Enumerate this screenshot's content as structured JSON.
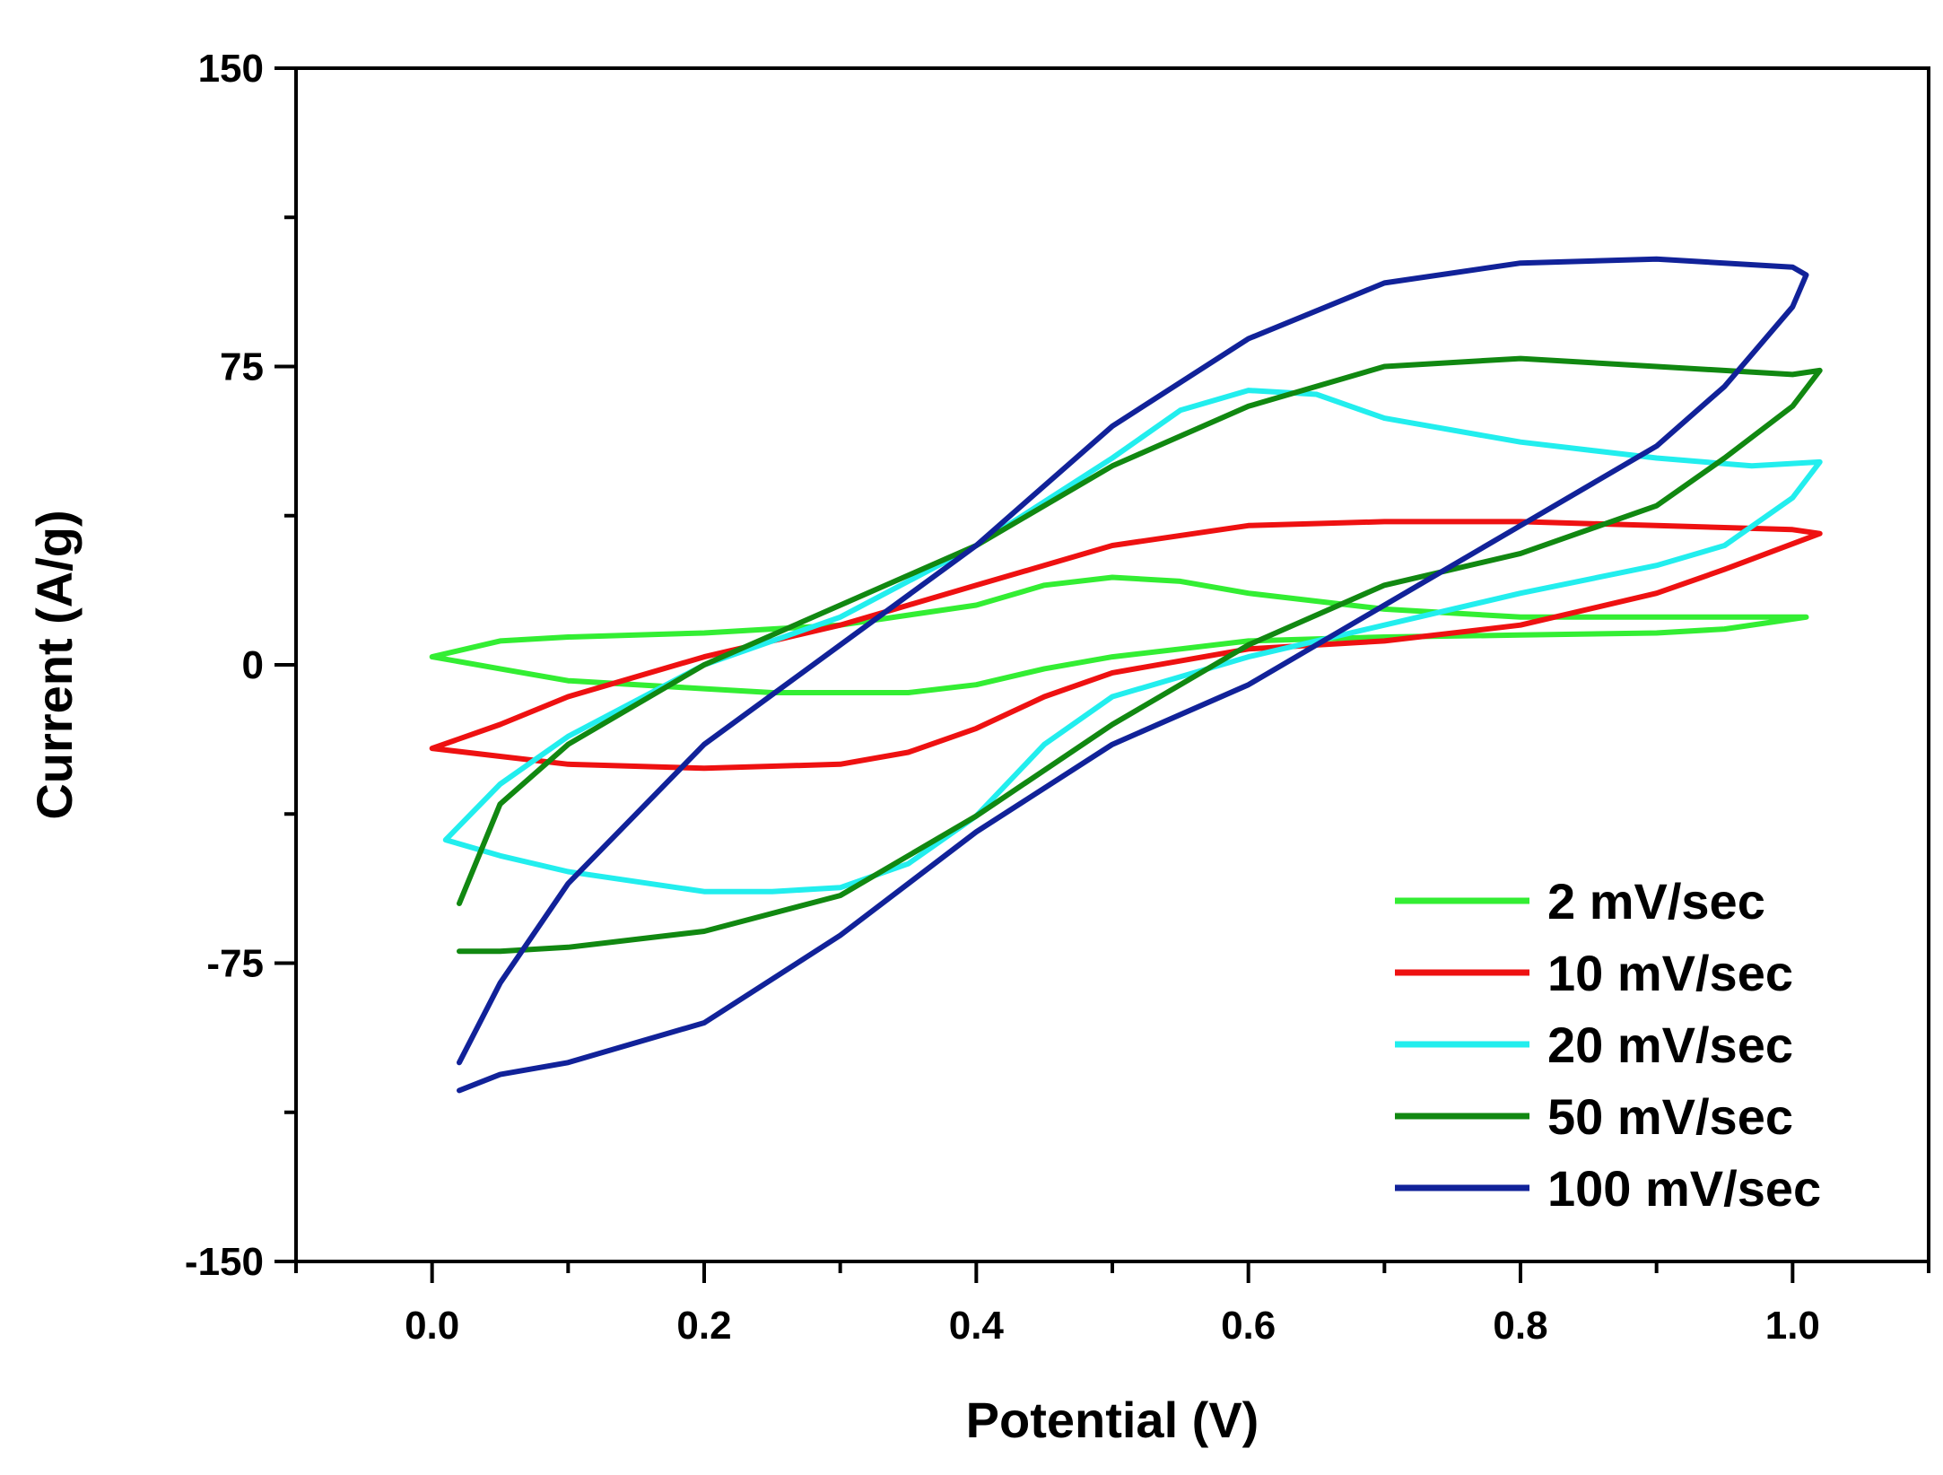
{
  "chart_data": {
    "type": "line",
    "title": "",
    "xlabel": "Potential (V)",
    "ylabel": "Current (A/g)",
    "xlim": [
      -0.1,
      1.1
    ],
    "ylim": [
      -150,
      150
    ],
    "x_ticks": [
      0.0,
      0.2,
      0.4,
      0.6,
      0.8,
      1.0
    ],
    "x_tick_labels": [
      "0.0",
      "0.2",
      "0.4",
      "0.6",
      "0.8",
      "1.0"
    ],
    "y_ticks": [
      150,
      75,
      0,
      -75,
      -150
    ],
    "y_tick_labels": [
      "150",
      "75",
      "0",
      "-75",
      "-150"
    ],
    "grid": false,
    "legend_position": "lower-right",
    "series": [
      {
        "name": "2 mV/sec",
        "color": "#33ee33",
        "x": [
          0.0,
          0.05,
          0.1,
          0.2,
          0.3,
          0.4,
          0.45,
          0.5,
          0.55,
          0.6,
          0.7,
          0.8,
          0.9,
          1.0,
          1.01,
          0.95,
          0.9,
          0.8,
          0.7,
          0.6,
          0.55,
          0.5,
          0.45,
          0.4,
          0.35,
          0.3,
          0.25,
          0.2,
          0.1,
          0.05,
          0.0
        ],
        "y": [
          2,
          6,
          7,
          8,
          10,
          15,
          20,
          22,
          21,
          18,
          14,
          12,
          12,
          12,
          12,
          9,
          8,
          7.5,
          7,
          6,
          4,
          2,
          -1,
          -5,
          -7,
          -7,
          -7,
          -6,
          -4,
          -1,
          2
        ]
      },
      {
        "name": "10 mV/sec",
        "color": "#ee1111",
        "x": [
          0.0,
          0.05,
          0.1,
          0.2,
          0.3,
          0.35,
          0.4,
          0.5,
          0.6,
          0.7,
          0.8,
          0.9,
          1.0,
          1.02,
          0.95,
          0.9,
          0.8,
          0.7,
          0.6,
          0.5,
          0.45,
          0.4,
          0.35,
          0.3,
          0.2,
          0.1,
          0.05,
          0.0
        ],
        "y": [
          -21,
          -15,
          -8,
          2,
          10,
          15,
          20,
          30,
          35,
          36,
          36,
          35,
          34,
          33,
          24,
          18,
          10,
          6,
          4,
          -2,
          -8,
          -16,
          -22,
          -25,
          -26,
          -25,
          -23,
          -21
        ]
      },
      {
        "name": "20 mV/sec",
        "color": "#22eeee",
        "x": [
          0.01,
          0.05,
          0.1,
          0.2,
          0.3,
          0.4,
          0.5,
          0.55,
          0.6,
          0.65,
          0.7,
          0.8,
          0.9,
          0.97,
          1.02,
          1.0,
          0.95,
          0.9,
          0.8,
          0.7,
          0.6,
          0.5,
          0.45,
          0.4,
          0.35,
          0.3,
          0.25,
          0.2,
          0.1,
          0.05,
          0.01
        ],
        "y": [
          -44,
          -30,
          -18,
          0,
          12,
          30,
          52,
          64,
          69,
          68,
          62,
          56,
          52,
          50,
          51,
          42,
          30,
          25,
          18,
          10,
          2,
          -8,
          -20,
          -38,
          -50,
          -56,
          -57,
          -57,
          -52,
          -48,
          -44
        ]
      },
      {
        "name": "50 mV/sec",
        "color": "#118811",
        "x": [
          0.02,
          0.05,
          0.1,
          0.2,
          0.3,
          0.4,
          0.5,
          0.6,
          0.7,
          0.8,
          0.9,
          1.0,
          1.02,
          1.0,
          0.95,
          0.9,
          0.8,
          0.7,
          0.6,
          0.5,
          0.4,
          0.3,
          0.2,
          0.1,
          0.05,
          0.02
        ],
        "y": [
          -60,
          -35,
          -20,
          0,
          15,
          30,
          50,
          65,
          75,
          77,
          75,
          73,
          74,
          65,
          52,
          40,
          28,
          20,
          5,
          -15,
          -38,
          -58,
          -67,
          -71,
          -72,
          -72
        ]
      },
      {
        "name": "100 mV/sec",
        "color": "#112299",
        "x": [
          0.02,
          0.05,
          0.1,
          0.2,
          0.3,
          0.4,
          0.5,
          0.6,
          0.7,
          0.8,
          0.9,
          1.0,
          1.01,
          1.0,
          0.95,
          0.9,
          0.8,
          0.7,
          0.6,
          0.5,
          0.4,
          0.3,
          0.2,
          0.1,
          0.05,
          0.02
        ],
        "y": [
          -100,
          -80,
          -55,
          -20,
          5,
          30,
          60,
          82,
          96,
          101,
          102,
          100,
          98,
          90,
          70,
          55,
          35,
          15,
          -5,
          -20,
          -42,
          -68,
          -90,
          -100,
          -103,
          -107
        ]
      }
    ]
  }
}
